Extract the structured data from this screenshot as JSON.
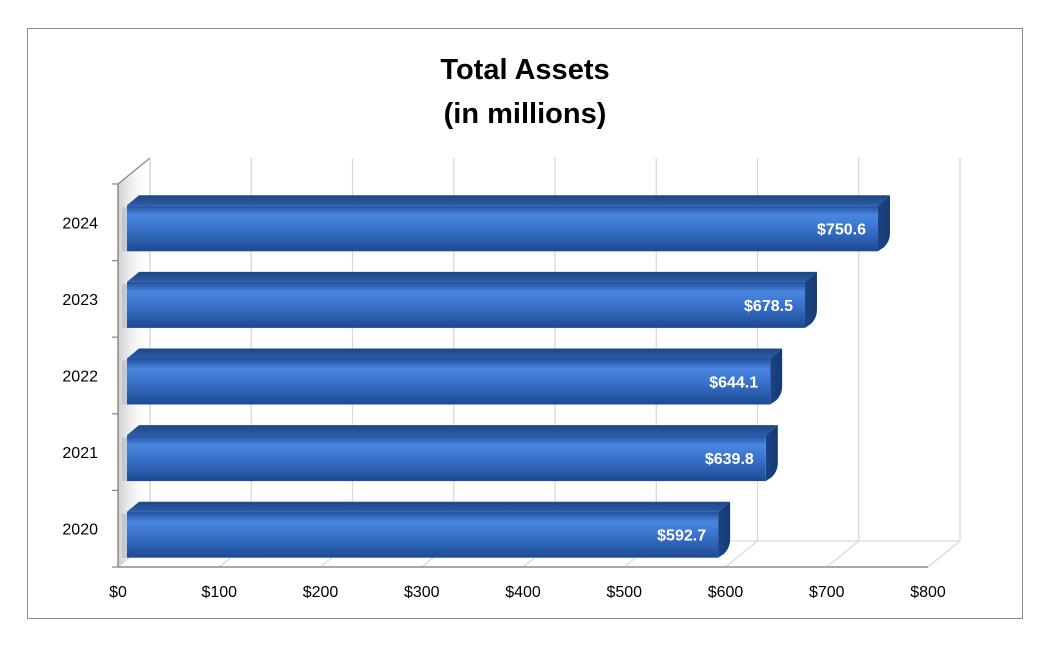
{
  "chart_data": {
    "type": "bar",
    "orientation": "horizontal",
    "title": [
      "Total Assets",
      "(in millions)"
    ],
    "categories": [
      "2020",
      "2021",
      "2022",
      "2023",
      "2024"
    ],
    "values": [
      592.7,
      639.8,
      644.1,
      678.5,
      750.6
    ],
    "value_labels": [
      "$592.7",
      "$639.8",
      "$644.1",
      "$678.5",
      "$750.6"
    ],
    "x_ticks": [
      "$0",
      "$100",
      "$200",
      "$300",
      "$400",
      "$500",
      "$600",
      "$700",
      "$800"
    ],
    "xlim": [
      0,
      800
    ],
    "grid": true,
    "style": "3d",
    "bar_color": "#2f66b7",
    "xlabel": "",
    "ylabel": ""
  }
}
